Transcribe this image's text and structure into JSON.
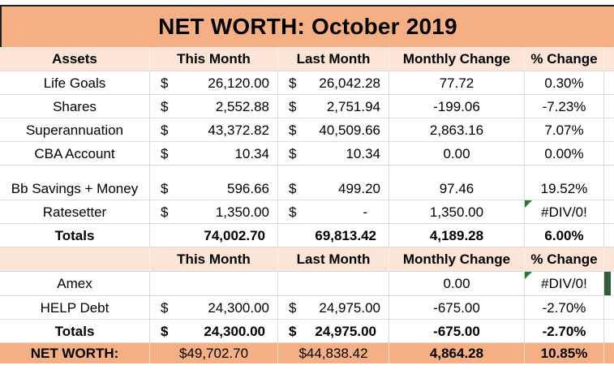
{
  "title": "NET WORTH: October 2019",
  "colors": {
    "title_bg": "#f4b084",
    "header_bg": "#fce4d6",
    "networth_bg": "#f4b084",
    "grid_line": "#d9d9d9",
    "error_flag_green": "#1e7e34",
    "side_marker_green": "#2f5f38"
  },
  "assets": {
    "section_label": "Assets",
    "header": [
      "This Month",
      "Last Month",
      "Monthly Change",
      "% Change"
    ],
    "rows": [
      {
        "label": "Life Goals",
        "this_month_symbol": "$",
        "this_month": "26,120.00",
        "last_month_symbol": "$",
        "last_month": "26,042.28",
        "monthly_change": "77.72",
        "pct_change": "0.30%",
        "error_flag": false,
        "side_marker": false
      },
      {
        "label": "Shares",
        "this_month_symbol": "$",
        "this_month": "2,552.88",
        "last_month_symbol": "$",
        "last_month": "2,751.94",
        "monthly_change": "-199.06",
        "pct_change": "-7.23%",
        "error_flag": false,
        "side_marker": false
      },
      {
        "label": "Superannuation",
        "this_month_symbol": "$",
        "this_month": "43,372.82",
        "last_month_symbol": "$",
        "last_month": "40,509.66",
        "monthly_change": "2,863.16",
        "pct_change": "7.07%",
        "error_flag": false,
        "side_marker": false
      },
      {
        "label": "CBA Account",
        "this_month_symbol": "$",
        "this_month": "10.34",
        "last_month_symbol": "$",
        "last_month": "10.34",
        "monthly_change": "0.00",
        "pct_change": "0.00%",
        "error_flag": false,
        "side_marker": false
      },
      {
        "label": "Bb Savings + Money",
        "this_month_symbol": "$",
        "this_month": "596.66",
        "last_month_symbol": "$",
        "last_month": "499.20",
        "monthly_change": "97.46",
        "pct_change": "19.52%",
        "error_flag": false,
        "side_marker": false
      },
      {
        "label": "Ratesetter",
        "this_month_symbol": "$",
        "this_month": "1,350.00",
        "last_month_symbol": "$",
        "last_month": "-",
        "monthly_change": "1,350.00",
        "pct_change": "#DIV/0!",
        "error_flag": true,
        "side_marker": false
      }
    ],
    "totals": {
      "label": "Totals",
      "this_month_symbol": "",
      "this_month": "74,002.70",
      "last_month_symbol": "",
      "last_month": "69,813.42",
      "monthly_change": "4,189.28",
      "pct_change": "6.00%"
    }
  },
  "liabilities": {
    "section_label": "",
    "header": [
      "This Month",
      "Last Month",
      "Monthly Change",
      "% Change"
    ],
    "rows": [
      {
        "label": "Amex",
        "this_month_symbol": "",
        "this_month": "",
        "last_month_symbol": "",
        "last_month": "",
        "monthly_change": "0.00",
        "pct_change": "#DIV/0!",
        "error_flag": true,
        "side_marker": true
      },
      {
        "label": "HELP Debt",
        "this_month_symbol": "$",
        "this_month": "24,300.00",
        "last_month_symbol": "$",
        "last_month": "24,975.00",
        "monthly_change": "-675.00",
        "pct_change": "-2.70%",
        "error_flag": false,
        "side_marker": false
      }
    ],
    "totals": {
      "label": "Totals",
      "this_month_symbol": "$",
      "this_month": "24,300.00",
      "last_month_symbol": "$",
      "last_month": "24,975.00",
      "monthly_change": "-675.00",
      "pct_change": "-2.70%"
    }
  },
  "net_worth": {
    "label": "NET WORTH:",
    "this_month": "$49,702.70",
    "last_month": "$44,838.42",
    "monthly_change": "4,864.28",
    "pct_change": "10.85%"
  }
}
